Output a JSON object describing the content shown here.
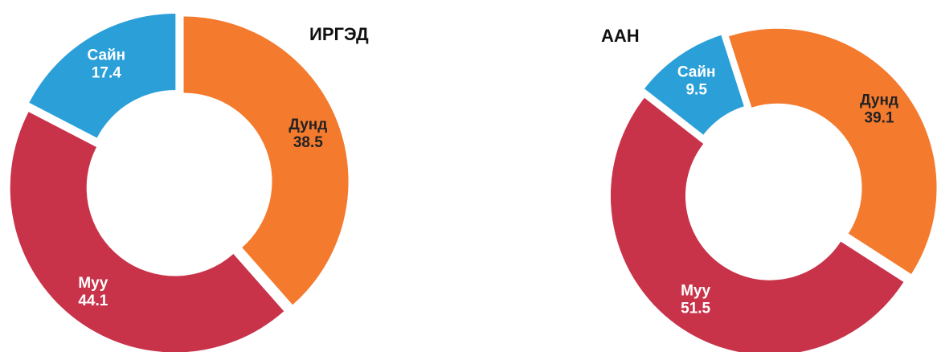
{
  "chart_data": [
    {
      "type": "donut",
      "title": "ИРГЭД",
      "categories": [
        "Дунд",
        "Муу",
        "Сайн"
      ],
      "values": [
        38.5,
        44.1,
        17.4
      ],
      "colors": [
        "#f47a2e",
        "#c8334a",
        "#2a9fd8"
      ]
    },
    {
      "type": "donut",
      "title": "ААН",
      "categories": [
        "Сайн",
        "Дунд",
        "Муу"
      ],
      "values": [
        9.5,
        39.1,
        51.5
      ],
      "colors": [
        "#2a9fd8",
        "#f47a2e",
        "#c8334a"
      ]
    }
  ]
}
